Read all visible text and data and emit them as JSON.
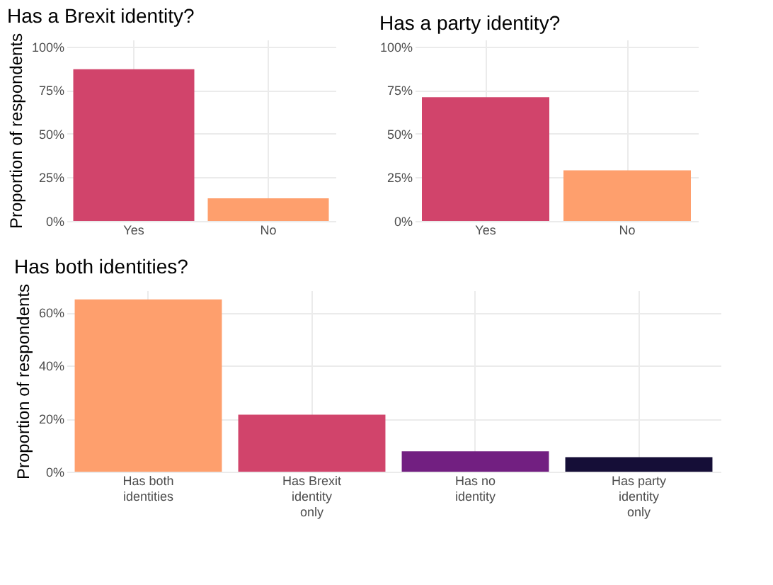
{
  "chart_data": [
    {
      "type": "bar",
      "title": "Has a Brexit identity?",
      "ylabel": "Proportion of respondents",
      "categories": [
        "Yes",
        "No"
      ],
      "values": [
        87,
        13
      ],
      "colors": [
        "#d1446b",
        "#fe9f6d"
      ],
      "ylim": [
        0,
        104
      ],
      "yticks": [
        {
          "value": 0,
          "label": "0%"
        },
        {
          "value": 25,
          "label": "25%"
        },
        {
          "value": 50,
          "label": "50%"
        },
        {
          "value": 75,
          "label": "75%"
        },
        {
          "value": 100,
          "label": "100%"
        }
      ],
      "grid": true,
      "legend": false
    },
    {
      "type": "bar",
      "title": "Has a party identity?",
      "categories": [
        "Yes",
        "No"
      ],
      "values": [
        71,
        29
      ],
      "colors": [
        "#d1446b",
        "#fe9f6d"
      ],
      "ylim": [
        0,
        104
      ],
      "yticks": [
        {
          "value": 0,
          "label": "0%"
        },
        {
          "value": 25,
          "label": "25%"
        },
        {
          "value": 50,
          "label": "50%"
        },
        {
          "value": 75,
          "label": "75%"
        },
        {
          "value": 100,
          "label": "100%"
        }
      ],
      "grid": true,
      "legend": false
    },
    {
      "type": "bar",
      "title": "Has both identities?",
      "ylabel": "Proportion of respondents",
      "categories": [
        "Has both identities",
        "Has Brexit identity only",
        "Has no identity",
        "Has party identity only"
      ],
      "values": [
        65,
        21.5,
        7.7,
        5.5
      ],
      "colors": [
        "#fe9f6d",
        "#d1446b",
        "#721f81",
        "#150e37"
      ],
      "ylim": [
        0,
        68.4
      ],
      "yticks": [
        {
          "value": 0,
          "label": "0%"
        },
        {
          "value": 20,
          "label": "20%"
        },
        {
          "value": 40,
          "label": "40%"
        },
        {
          "value": 60,
          "label": "60%"
        }
      ],
      "grid": true,
      "legend": false
    }
  ]
}
